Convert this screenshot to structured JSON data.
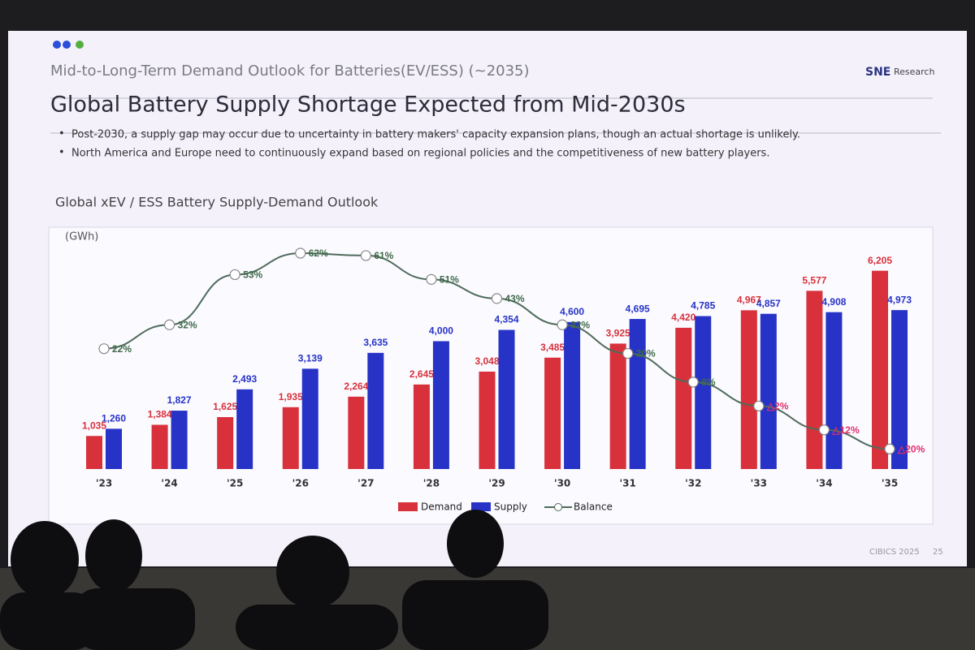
{
  "header": {
    "subtitle": "Mid-to-Long-Term Demand Outlook for Batteries(EV/ESS) (~2035)",
    "title": "Global Battery Supply Shortage Expected from Mid-2030s",
    "logo": "SNE",
    "logo_sub": "Research",
    "bullets": [
      "Post-2030, a supply gap may occur due to uncertainty in battery makers' capacity expansion plans, though an actual shortage is unlikely.",
      "North America and Europe need to continuously expand based on regional policies and the competitiveness of new battery players."
    ]
  },
  "footer": {
    "event": "CIBICS 2025",
    "page": "25"
  },
  "chart_data": {
    "type": "bar",
    "title": "Global xEV / ESS Battery Supply-Demand Outlook",
    "unit": "(GWh)",
    "categories": [
      "'23",
      "'24",
      "'25",
      "'26",
      "'27",
      "'28",
      "'29",
      "'30",
      "'31",
      "'32",
      "'33",
      "'34",
      "'35"
    ],
    "ylim": [
      0,
      6500
    ],
    "y2lim": [
      -60,
      80
    ],
    "series": [
      {
        "name": "Demand",
        "color": "#d8313b",
        "values": [
          1035,
          1384,
          1625,
          1935,
          2264,
          2645,
          3048,
          3485,
          3925,
          4420,
          4967,
          5577,
          6205
        ],
        "value_labels": [
          "1,035",
          "1,384",
          "1,625",
          "1,935",
          "2,264",
          "2,645",
          "3,048",
          "3,485",
          "3,925",
          "4,420",
          "4,967",
          "5,577",
          "6,205"
        ]
      },
      {
        "name": "Supply",
        "color": "#2733c6",
        "values": [
          1260,
          1827,
          2493,
          3139,
          3635,
          4000,
          4354,
          4600,
          4695,
          4785,
          4857,
          4908,
          4973
        ],
        "value_labels": [
          "1,260",
          "1,827",
          "2,493",
          "3,139",
          "3,635",
          "4,000",
          "4,354",
          "4,600",
          "4,695",
          "4,785",
          "4,857",
          "4,908",
          "4,973"
        ]
      },
      {
        "name": "Balance",
        "type": "line",
        "axis": "y2",
        "color": "#4e6b5a",
        "values": [
          22,
          32,
          53,
          62,
          61,
          51,
          43,
          32,
          20,
          8,
          -2,
          -12,
          -20
        ],
        "value_labels": [
          "22%",
          "32%",
          "53%",
          "62%",
          "61%",
          "51%",
          "43%",
          "32%",
          "20%",
          "8%",
          "△2%",
          "△12%",
          "△20%"
        ]
      }
    ]
  }
}
